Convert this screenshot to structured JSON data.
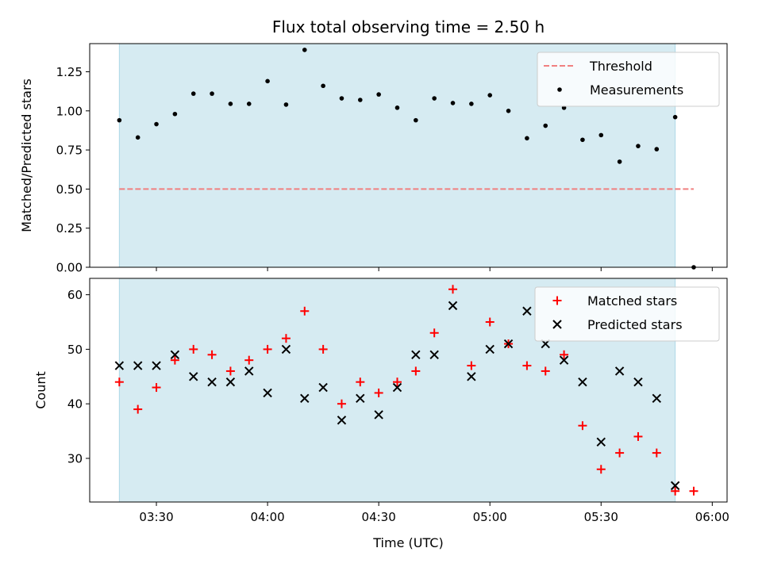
{
  "chart_data": [
    {
      "type": "scatter",
      "title": "Flux total observing time = 2.50 h",
      "ylabel": "Matched/Predicted stars",
      "ylim": [
        0,
        1.43
      ],
      "yticks": [
        0.0,
        0.25,
        0.5,
        0.75,
        1.0,
        1.25
      ],
      "ytick_labels": [
        "0.00",
        "0.25",
        "0.50",
        "0.75",
        "1.00",
        "1.25"
      ],
      "xlim": [
        "03:12",
        "06:04"
      ],
      "shaded_span": [
        "03:20",
        "05:50"
      ],
      "shade_color": "#add8e6",
      "legend_position": "upper right",
      "threshold": {
        "name": "Threshold",
        "value": 0.5,
        "x_range": [
          "03:20",
          "05:55"
        ],
        "color": "#f08080",
        "style": "dashed"
      },
      "series": [
        {
          "name": "Measurements",
          "color": "#000000",
          "marker": "dot",
          "points": [
            [
              "03:20",
              0.94
            ],
            [
              "03:25",
              0.83
            ],
            [
              "03:30",
              0.915
            ],
            [
              "03:35",
              0.98
            ],
            [
              "03:40",
              1.11
            ],
            [
              "03:45",
              1.11
            ],
            [
              "03:50",
              1.045
            ],
            [
              "03:55",
              1.045
            ],
            [
              "04:00",
              1.19
            ],
            [
              "04:05",
              1.04
            ],
            [
              "04:10",
              1.39
            ],
            [
              "04:15",
              1.16
            ],
            [
              "04:20",
              1.08
            ],
            [
              "04:25",
              1.07
            ],
            [
              "04:30",
              1.105
            ],
            [
              "04:35",
              1.02
            ],
            [
              "04:40",
              0.94
            ],
            [
              "04:45",
              1.08
            ],
            [
              "04:50",
              1.05
            ],
            [
              "04:55",
              1.045
            ],
            [
              "05:00",
              1.1
            ],
            [
              "05:05",
              1.0
            ],
            [
              "05:10",
              0.825
            ],
            [
              "05:15",
              0.905
            ],
            [
              "05:20",
              1.02
            ],
            [
              "05:25",
              0.815
            ],
            [
              "05:30",
              0.845
            ],
            [
              "05:35",
              0.675
            ],
            [
              "05:40",
              0.775
            ],
            [
              "05:45",
              0.755
            ],
            [
              "05:50",
              0.96
            ],
            [
              "05:55",
              0.0
            ]
          ]
        }
      ]
    },
    {
      "type": "scatter",
      "xlabel": "Time (UTC)",
      "ylabel": "Count",
      "ylim": [
        22,
        63
      ],
      "yticks": [
        30,
        40,
        50,
        60
      ],
      "ytick_labels": [
        "30",
        "40",
        "50",
        "60"
      ],
      "xlim": [
        "03:12",
        "06:04"
      ],
      "xticks": [
        "03:30",
        "04:00",
        "04:30",
        "05:00",
        "05:30",
        "06:00"
      ],
      "xtick_labels": [
        "03:30",
        "04:00",
        "04:30",
        "05:00",
        "05:30",
        "06:00"
      ],
      "shaded_span": [
        "03:20",
        "05:50"
      ],
      "shade_color": "#add8e6",
      "legend_position": "upper right",
      "series": [
        {
          "name": "Matched stars",
          "color": "#ff0000",
          "marker": "plus",
          "points": [
            [
              "03:20",
              44
            ],
            [
              "03:25",
              39
            ],
            [
              "03:30",
              43
            ],
            [
              "03:35",
              48
            ],
            [
              "03:40",
              50
            ],
            [
              "03:45",
              49
            ],
            [
              "03:50",
              46
            ],
            [
              "03:55",
              48
            ],
            [
              "04:00",
              50
            ],
            [
              "04:05",
              52
            ],
            [
              "04:10",
              57
            ],
            [
              "04:15",
              50
            ],
            [
              "04:20",
              40
            ],
            [
              "04:25",
              44
            ],
            [
              "04:30",
              42
            ],
            [
              "04:35",
              44
            ],
            [
              "04:40",
              46
            ],
            [
              "04:45",
              53
            ],
            [
              "04:50",
              61
            ],
            [
              "04:55",
              47
            ],
            [
              "05:00",
              55
            ],
            [
              "05:05",
              51
            ],
            [
              "05:10",
              47
            ],
            [
              "05:15",
              46
            ],
            [
              "05:20",
              49
            ],
            [
              "05:25",
              36
            ],
            [
              "05:30",
              28
            ],
            [
              "05:35",
              31
            ],
            [
              "05:40",
              34
            ],
            [
              "05:45",
              31
            ],
            [
              "05:50",
              24
            ],
            [
              "05:55",
              24
            ]
          ]
        },
        {
          "name": "Predicted stars",
          "color": "#000000",
          "marker": "x",
          "points": [
            [
              "03:20",
              47
            ],
            [
              "03:25",
              47
            ],
            [
              "03:30",
              47
            ],
            [
              "03:35",
              49
            ],
            [
              "03:40",
              45
            ],
            [
              "03:45",
              44
            ],
            [
              "03:50",
              44
            ],
            [
              "03:55",
              46
            ],
            [
              "04:00",
              42
            ],
            [
              "04:05",
              50
            ],
            [
              "04:10",
              41
            ],
            [
              "04:15",
              43
            ],
            [
              "04:20",
              37
            ],
            [
              "04:25",
              41
            ],
            [
              "04:30",
              38
            ],
            [
              "04:35",
              43
            ],
            [
              "04:40",
              49
            ],
            [
              "04:45",
              49
            ],
            [
              "04:50",
              58
            ],
            [
              "04:55",
              45
            ],
            [
              "05:00",
              50
            ],
            [
              "05:05",
              51
            ],
            [
              "05:10",
              57
            ],
            [
              "05:15",
              51
            ],
            [
              "05:20",
              48
            ],
            [
              "05:25",
              44
            ],
            [
              "05:30",
              33
            ],
            [
              "05:35",
              46
            ],
            [
              "05:40",
              44
            ],
            [
              "05:45",
              41
            ],
            [
              "05:50",
              25
            ]
          ]
        }
      ]
    }
  ]
}
